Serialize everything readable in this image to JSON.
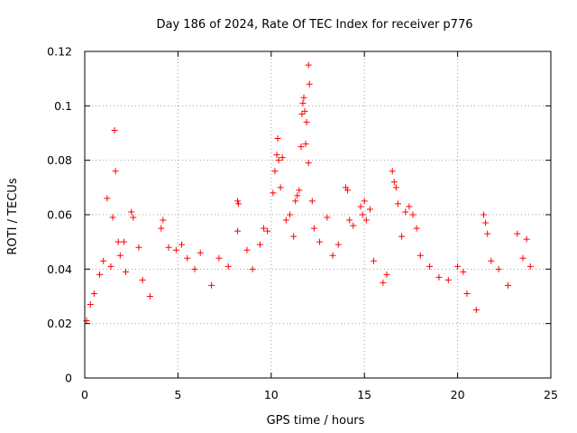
{
  "chart_data": {
    "type": "scatter",
    "title": "Day 186 of 2024, Rate Of TEC Index for receiver p776",
    "xlabel": "GPS time / hours",
    "ylabel": "ROTI / TECUs",
    "xlim": [
      0,
      25
    ],
    "ylim": [
      0,
      0.12
    ],
    "xticks": [
      0,
      5,
      10,
      15,
      20,
      25
    ],
    "xtick_labels": [
      "0",
      "5",
      "10",
      "15",
      "20",
      "25"
    ],
    "yticks": [
      0,
      0.02,
      0.04,
      0.06,
      0.08,
      0.1,
      0.12
    ],
    "ytick_labels": [
      "0",
      "0.02",
      "0.04",
      "0.06",
      "0.08",
      "0.1",
      "0.12"
    ],
    "grid": true,
    "marker": "+",
    "marker_color": "#ff0000",
    "series": [
      {
        "name": "ROTI",
        "points": [
          [
            0.1,
            0.021
          ],
          [
            0.3,
            0.027
          ],
          [
            0.5,
            0.031
          ],
          [
            0.8,
            0.038
          ],
          [
            1.0,
            0.043
          ],
          [
            1.2,
            0.066
          ],
          [
            1.4,
            0.041
          ],
          [
            1.5,
            0.059
          ],
          [
            1.6,
            0.091
          ],
          [
            1.65,
            0.076
          ],
          [
            1.8,
            0.05
          ],
          [
            1.9,
            0.045
          ],
          [
            2.1,
            0.05
          ],
          [
            2.2,
            0.039
          ],
          [
            2.5,
            0.061
          ],
          [
            2.6,
            0.059
          ],
          [
            2.9,
            0.048
          ],
          [
            3.1,
            0.036
          ],
          [
            3.5,
            0.03
          ],
          [
            4.1,
            0.055
          ],
          [
            4.2,
            0.058
          ],
          [
            4.5,
            0.048
          ],
          [
            4.9,
            0.047
          ],
          [
            5.2,
            0.049
          ],
          [
            5.5,
            0.044
          ],
          [
            5.9,
            0.04
          ],
          [
            6.2,
            0.046
          ],
          [
            6.8,
            0.034
          ],
          [
            7.2,
            0.044
          ],
          [
            7.7,
            0.041
          ],
          [
            8.2,
            0.065
          ],
          [
            8.25,
            0.064
          ],
          [
            8.2,
            0.054
          ],
          [
            8.7,
            0.047
          ],
          [
            9.0,
            0.04
          ],
          [
            9.4,
            0.049
          ],
          [
            9.6,
            0.055
          ],
          [
            9.8,
            0.054
          ],
          [
            10.1,
            0.068
          ],
          [
            10.2,
            0.076
          ],
          [
            10.3,
            0.082
          ],
          [
            10.35,
            0.088
          ],
          [
            10.4,
            0.08
          ],
          [
            10.5,
            0.07
          ],
          [
            10.6,
            0.081
          ],
          [
            10.8,
            0.058
          ],
          [
            11.0,
            0.06
          ],
          [
            11.2,
            0.052
          ],
          [
            11.3,
            0.065
          ],
          [
            11.4,
            0.067
          ],
          [
            11.5,
            0.069
          ],
          [
            11.6,
            0.085
          ],
          [
            11.65,
            0.097
          ],
          [
            11.7,
            0.101
          ],
          [
            11.75,
            0.103
          ],
          [
            11.8,
            0.098
          ],
          [
            11.85,
            0.086
          ],
          [
            11.9,
            0.094
          ],
          [
            12.0,
            0.115
          ],
          [
            12.05,
            0.108
          ],
          [
            12.0,
            0.079
          ],
          [
            12.2,
            0.065
          ],
          [
            12.3,
            0.055
          ],
          [
            12.6,
            0.05
          ],
          [
            13.0,
            0.059
          ],
          [
            13.3,
            0.045
          ],
          [
            13.6,
            0.049
          ],
          [
            14.0,
            0.07
          ],
          [
            14.1,
            0.069
          ],
          [
            14.2,
            0.058
          ],
          [
            14.4,
            0.056
          ],
          [
            14.8,
            0.063
          ],
          [
            14.9,
            0.06
          ],
          [
            15.0,
            0.065
          ],
          [
            15.1,
            0.058
          ],
          [
            15.3,
            0.062
          ],
          [
            15.5,
            0.043
          ],
          [
            16.0,
            0.035
          ],
          [
            16.2,
            0.038
          ],
          [
            16.5,
            0.076
          ],
          [
            16.6,
            0.072
          ],
          [
            16.7,
            0.07
          ],
          [
            16.8,
            0.064
          ],
          [
            17.0,
            0.052
          ],
          [
            17.2,
            0.061
          ],
          [
            17.4,
            0.063
          ],
          [
            17.6,
            0.06
          ],
          [
            17.8,
            0.055
          ],
          [
            18.0,
            0.045
          ],
          [
            18.5,
            0.041
          ],
          [
            19.0,
            0.037
          ],
          [
            19.5,
            0.036
          ],
          [
            20.0,
            0.041
          ],
          [
            20.3,
            0.039
          ],
          [
            20.5,
            0.031
          ],
          [
            21.0,
            0.025
          ],
          [
            21.4,
            0.06
          ],
          [
            21.5,
            0.057
          ],
          [
            21.6,
            0.053
          ],
          [
            21.8,
            0.043
          ],
          [
            22.2,
            0.04
          ],
          [
            22.7,
            0.034
          ],
          [
            23.2,
            0.053
          ],
          [
            23.5,
            0.044
          ],
          [
            23.7,
            0.051
          ],
          [
            23.9,
            0.041
          ]
        ]
      }
    ]
  }
}
